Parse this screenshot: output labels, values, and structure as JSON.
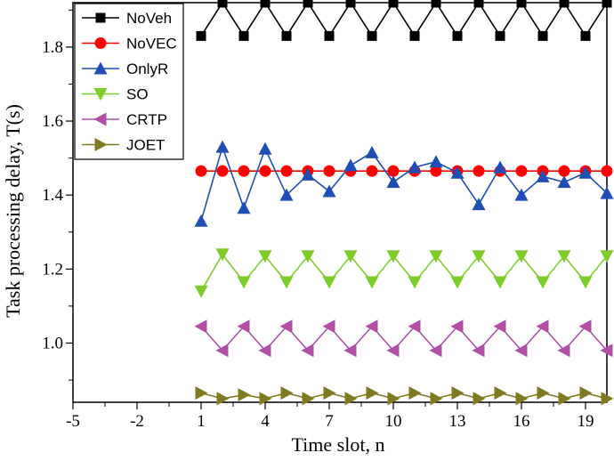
{
  "chart_data": {
    "type": "line",
    "xlabel": "Time slot, n",
    "ylabel": "Task processing delay, T(s)",
    "xlim": [
      -5,
      20
    ],
    "ylim": [
      0.84,
      1.92
    ],
    "x_ticks": [
      -5,
      -2,
      1,
      4,
      7,
      10,
      13,
      16,
      19
    ],
    "y_ticks": [
      1.0,
      1.2,
      1.4,
      1.6,
      1.8
    ],
    "y_tick_labels": [
      "1.0",
      "1.2",
      "1.4",
      "1.6",
      "1.8"
    ],
    "legend_position": "top-left",
    "x": [
      1,
      2,
      3,
      4,
      5,
      6,
      7,
      8,
      9,
      10,
      11,
      12,
      13,
      14,
      15,
      16,
      17,
      18,
      19,
      20
    ],
    "series": [
      {
        "name": "NoVeh",
        "color": "#000000",
        "marker": "square",
        "values": [
          1.83,
          1.92,
          1.83,
          1.92,
          1.83,
          1.92,
          1.83,
          1.92,
          1.83,
          1.92,
          1.83,
          1.92,
          1.83,
          1.92,
          1.83,
          1.92,
          1.83,
          1.92,
          1.83,
          1.92
        ]
      },
      {
        "name": "NoVEC",
        "color": "#ff0000",
        "marker": "circle",
        "values": [
          1.465,
          1.465,
          1.465,
          1.465,
          1.465,
          1.465,
          1.465,
          1.465,
          1.465,
          1.465,
          1.465,
          1.465,
          1.465,
          1.465,
          1.465,
          1.465,
          1.465,
          1.465,
          1.465,
          1.465
        ]
      },
      {
        "name": "OnlyR",
        "color": "#1f4fb4",
        "marker": "triangle-up",
        "values": [
          1.33,
          1.53,
          1.365,
          1.525,
          1.4,
          1.455,
          1.41,
          1.48,
          1.515,
          1.435,
          1.475,
          1.49,
          1.46,
          1.375,
          1.475,
          1.4,
          1.45,
          1.435,
          1.46,
          1.405
        ]
      },
      {
        "name": "SO",
        "color": "#7dcc2a",
        "marker": "triangle-down",
        "values": [
          1.14,
          1.24,
          1.165,
          1.235,
          1.165,
          1.235,
          1.165,
          1.235,
          1.165,
          1.235,
          1.165,
          1.235,
          1.165,
          1.235,
          1.165,
          1.235,
          1.165,
          1.235,
          1.165,
          1.235
        ]
      },
      {
        "name": "CRTP",
        "color": "#b14fa8",
        "marker": "triangle-left",
        "values": [
          1.045,
          0.98,
          1.045,
          0.98,
          1.045,
          0.98,
          1.045,
          0.98,
          1.045,
          0.98,
          1.045,
          0.98,
          1.045,
          0.98,
          1.045,
          0.98,
          1.045,
          0.98,
          1.045,
          0.98
        ]
      },
      {
        "name": "JOET",
        "color": "#7f7a1f",
        "marker": "triangle-right",
        "values": [
          0.865,
          0.85,
          0.86,
          0.85,
          0.865,
          0.85,
          0.865,
          0.85,
          0.865,
          0.85,
          0.865,
          0.85,
          0.865,
          0.85,
          0.865,
          0.85,
          0.865,
          0.85,
          0.865,
          0.85
        ]
      }
    ]
  }
}
